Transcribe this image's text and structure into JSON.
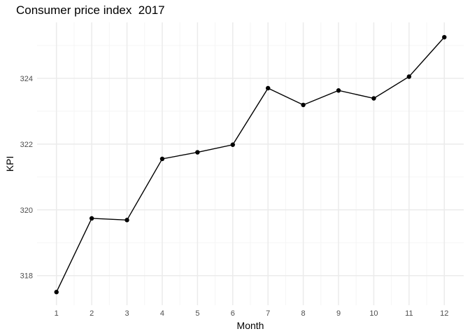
{
  "chart_data": {
    "type": "line",
    "title": "Consumer price index  2017",
    "xlabel": "Month",
    "ylabel": "KPI",
    "x": [
      1,
      2,
      3,
      4,
      5,
      6,
      7,
      8,
      9,
      10,
      11,
      12
    ],
    "x_tick_labels": [
      "1",
      "2",
      "3",
      "4",
      "5",
      "6",
      "7",
      "8",
      "9",
      "10",
      "11",
      "12"
    ],
    "y": [
      317.5,
      319.74,
      319.69,
      321.55,
      321.75,
      321.98,
      323.7,
      323.19,
      323.63,
      323.39,
      324.05,
      325.25
    ],
    "y_tick_labels": [
      "318",
      "320",
      "322",
      "324"
    ],
    "y_ticks": [
      318,
      320,
      322,
      324
    ],
    "xlim": [
      0.45,
      12.55
    ],
    "ylim": [
      317.1,
      325.7
    ],
    "grid": true,
    "legend": "none",
    "colors": {
      "line": "#000000",
      "point": "#000000",
      "grid_major": "#ebebeb",
      "grid_minor": "#f5f5f5",
      "background": "#ffffff"
    }
  }
}
